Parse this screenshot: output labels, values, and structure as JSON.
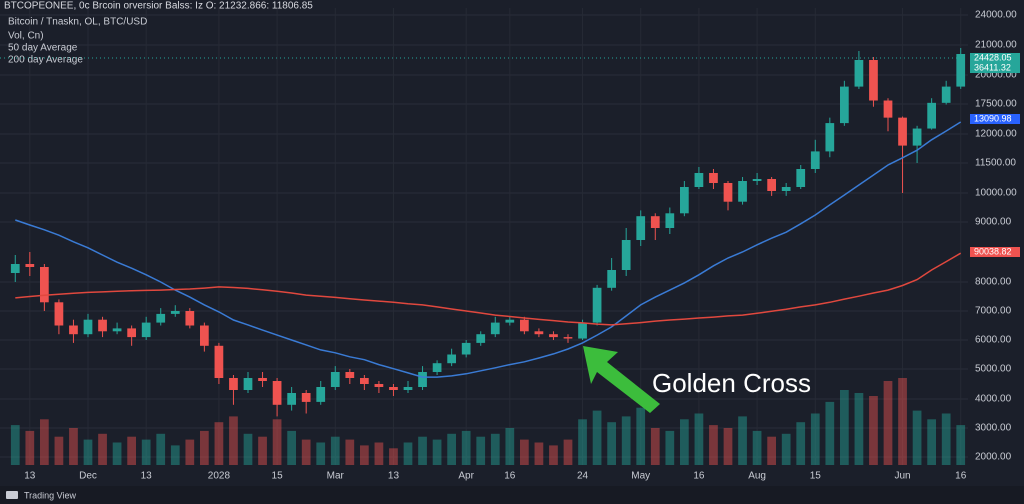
{
  "chart_data": {
    "type": "candlestick",
    "title": "BTCOPEONEE, 0c  Brcoin orversior Balss: Iz O: 21232.866: 11806.85",
    "subtitle": "Bitcoin / Tnaskn, OL, BTC/USD",
    "categories": [
      null,
      "13",
      null,
      null,
      null,
      "Dec",
      null,
      null,
      null,
      "13",
      null,
      null,
      null,
      null,
      "2028",
      null,
      null,
      null,
      "15",
      null,
      null,
      null,
      "Mar",
      null,
      null,
      null,
      "13",
      null,
      null,
      null,
      null,
      "Apr",
      null,
      null,
      "16",
      null,
      null,
      null,
      null,
      "24",
      null,
      null,
      null,
      "May",
      null,
      null,
      null,
      "16",
      null,
      null,
      null,
      "Aug",
      null,
      null,
      null,
      "15",
      null,
      null,
      null,
      null,
      null,
      "Jun",
      null,
      null,
      null,
      "16"
    ],
    "open": [
      8150,
      8300,
      8250,
      7300,
      6500,
      6200,
      6700,
      6300,
      6400,
      6100,
      6600,
      6900,
      7000,
      6500,
      5800,
      4700,
      4300,
      4700,
      4600,
      3800,
      4200,
      3900,
      4400,
      4900,
      4700,
      4500,
      4400,
      4300,
      4400,
      4900,
      5200,
      5500,
      5900,
      6200,
      6600,
      6700,
      6300,
      6200,
      6100,
      6050,
      6600,
      7800,
      8200,
      8700,
      9200,
      8900,
      9300,
      10300,
      11000,
      10500,
      9700,
      10600,
      10700,
      10100,
      10300,
      11200,
      11700,
      14000,
      19000,
      20500,
      17800,
      15000,
      11800,
      13000,
      17600,
      19000
    ],
    "high": [
      8450,
      8500,
      8300,
      7400,
      6700,
      6900,
      6800,
      6600,
      6500,
      6800,
      7100,
      7200,
      7100,
      6600,
      5900,
      4800,
      4900,
      4900,
      4700,
      4400,
      4300,
      4600,
      5100,
      5000,
      4800,
      4600,
      4500,
      4600,
      5100,
      5300,
      5700,
      6000,
      6300,
      6800,
      6800,
      6800,
      6400,
      6300,
      6200,
      6700,
      7900,
      8400,
      8900,
      9400,
      9300,
      9500,
      10600,
      11300,
      11200,
      10600,
      10800,
      11000,
      10800,
      10500,
      11400,
      11900,
      15000,
      19500,
      20800,
      20600,
      18000,
      15200,
      13500,
      18000,
      19500,
      20900
    ],
    "low": [
      8000,
      8100,
      7000,
      6200,
      5900,
      6100,
      6100,
      6200,
      5800,
      6000,
      6500,
      6800,
      6400,
      5600,
      4500,
      3800,
      4200,
      4400,
      3400,
      3600,
      3500,
      3800,
      4300,
      4500,
      4300,
      4200,
      4100,
      4200,
      4300,
      4800,
      5100,
      5400,
      5800,
      6100,
      6500,
      6200,
      6100,
      6000,
      5900,
      6000,
      6500,
      7700,
      8100,
      8600,
      8700,
      8800,
      9200,
      10200,
      10200,
      9400,
      9600,
      10400,
      9900,
      9900,
      10200,
      11000,
      11600,
      13500,
      18800,
      17000,
      12500,
      10000,
      11500,
      12800,
      17400,
      18800
    ],
    "close": [
      8300,
      8250,
      7300,
      6500,
      6200,
      6700,
      6300,
      6400,
      6100,
      6600,
      6900,
      7000,
      6500,
      5800,
      4700,
      4300,
      4700,
      4600,
      3800,
      4200,
      3900,
      4400,
      4900,
      4700,
      4500,
      4400,
      4300,
      4400,
      4900,
      5200,
      5500,
      5900,
      6200,
      6600,
      6700,
      6300,
      6200,
      6100,
      6050,
      6600,
      7800,
      8200,
      8700,
      9200,
      8900,
      9300,
      10300,
      11000,
      10500,
      9700,
      10600,
      10700,
      10100,
      10300,
      11200,
      11700,
      14000,
      19000,
      20500,
      17800,
      15000,
      11800,
      13000,
      17600,
      19000,
      20700
    ],
    "up_color": "#26a69a",
    "down_color": "#ef5350",
    "series": [
      {
        "name": "50 day Average",
        "color": "#3a7bd5",
        "values": [
          9070,
          8950,
          8870,
          8780,
          8670,
          8570,
          8450,
          8330,
          8230,
          8120,
          8000,
          7720,
          7480,
          7210,
          6970,
          6690,
          6520,
          6340,
          6170,
          6000,
          5830,
          5660,
          5560,
          5420,
          5320,
          5150,
          5010,
          4870,
          4730,
          4730,
          4770,
          4840,
          4940,
          5040,
          5150,
          5250,
          5380,
          5520,
          5690,
          5900,
          6170,
          6450,
          6830,
          7210,
          7480,
          7720,
          7970,
          8120,
          8270,
          8400,
          8500,
          8620,
          8730,
          8830,
          8970,
          9240,
          9590,
          9930,
          10400,
          10900,
          11400,
          11590,
          11720,
          11900,
          12550,
          14200
        ]
      },
      {
        "name": "200 day Average",
        "color": "#e0483e",
        "values": [
          7450,
          7500,
          7540,
          7580,
          7610,
          7640,
          7660,
          7680,
          7700,
          7710,
          7720,
          7740,
          7760,
          7790,
          7830,
          7810,
          7780,
          7730,
          7680,
          7620,
          7550,
          7510,
          7470,
          7420,
          7380,
          7340,
          7300,
          7250,
          7210,
          7140,
          7070,
          7000,
          6930,
          6860,
          6810,
          6760,
          6710,
          6670,
          6620,
          6590,
          6550,
          6520,
          6560,
          6600,
          6650,
          6690,
          6720,
          6760,
          6790,
          6830,
          6860,
          6920,
          6990,
          7060,
          7140,
          7210,
          7300,
          7410,
          7510,
          7620,
          7720,
          7880,
          8040,
          8200,
          8340,
          8480
        ]
      }
    ],
    "volume": {
      "name": "Vol, Cn)",
      "values": [
        3100,
        2900,
        3300,
        2700,
        3000,
        2600,
        2800,
        2500,
        2700,
        2600,
        2800,
        2400,
        2600,
        2900,
        3200,
        3400,
        2800,
        2700,
        3300,
        2900,
        2600,
        2500,
        2700,
        2600,
        2400,
        2500,
        2300,
        2500,
        2700,
        2600,
        2800,
        2900,
        2700,
        2800,
        3000,
        2600,
        2500,
        2400,
        2600,
        3300,
        3600,
        3200,
        3400,
        3700,
        3000,
        2900,
        3300,
        3500,
        3100,
        3000,
        3400,
        2900,
        2700,
        2800,
        3200,
        3500,
        3900,
        4300,
        4200,
        4100,
        4600,
        4700,
        3600,
        3300,
        3500,
        3100
      ]
    },
    "ylim": [
      1700,
      24700
    ],
    "yticks": [
      {
        "value": 2000,
        "label": "2000.00"
      },
      {
        "value": 3000,
        "label": "3000.00"
      },
      {
        "value": 4000,
        "label": "4000.00"
      },
      {
        "value": 5000,
        "label": "5000.00"
      },
      {
        "value": 6000,
        "label": "6000.00"
      },
      {
        "value": 7000,
        "label": "7000.00"
      },
      {
        "value": 8000,
        "label": "8000.00"
      },
      {
        "value": 9000,
        "label": "9000.00"
      },
      {
        "value": 10000,
        "label": "10000.00"
      },
      {
        "value": 11500,
        "label": "11500.00"
      },
      {
        "value": 12000,
        "label": "12000.00"
      },
      {
        "value": 17500,
        "label": "17500.00"
      },
      {
        "value": 20000,
        "label": "20000.00"
      },
      {
        "value": 21000,
        "label": "21000.00"
      },
      {
        "value": 24000,
        "label": "24000.00"
      }
    ],
    "grid": true,
    "annotation": "Golden Cross",
    "price_badges": [
      {
        "label": "24428.05",
        "color": "#26a69a"
      },
      {
        "label": "36411.32",
        "color": "#26a69a"
      },
      {
        "label": "13090.98",
        "color": "#2962ff"
      },
      {
        "label": "90038.82",
        "color": "#ef5350"
      }
    ],
    "logo": "Trading View"
  }
}
